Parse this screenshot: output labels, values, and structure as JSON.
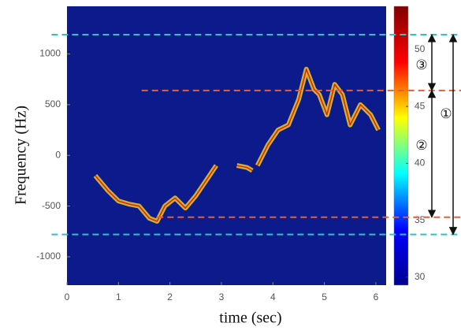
{
  "chart_data": {
    "type": "spectrogram",
    "xlabel": "time (sec)",
    "ylabel": "Frequency (Hz)",
    "xlim": [
      0,
      6.2
    ],
    "xticks": [
      0,
      1,
      2,
      3,
      4,
      5,
      6
    ],
    "ylim": [
      -1280,
      1470
    ],
    "yticks": [
      -1000,
      -500,
      0,
      500,
      1000
    ],
    "background": "#0c1a8c",
    "colormap": [
      "#00008f",
      "#0000ff",
      "#00ffff",
      "#ffff00",
      "#ff0000",
      "#800000"
    ],
    "clim": [
      29.3,
      53.8
    ],
    "cticks": [
      30,
      35,
      40,
      45,
      50
    ],
    "series": [
      {
        "color": "#f0d020",
        "x": [
          0.55,
          0.8,
          1.0,
          1.2,
          1.4,
          1.6,
          1.75,
          1.9,
          2.1,
          2.3,
          2.5,
          2.7,
          2.9
        ],
        "values": [
          -200,
          -350,
          -450,
          -480,
          -500,
          -620,
          -650,
          -500,
          -420,
          -520,
          -400,
          -250,
          -100
        ]
      },
      {
        "color": "#f0d020",
        "x": [
          3.3,
          3.5,
          3.6
        ],
        "values": [
          -100,
          -120,
          -150
        ]
      },
      {
        "color": "#f0d020",
        "x": [
          3.7,
          3.9,
          4.1,
          4.3,
          4.5,
          4.65,
          4.8,
          4.9,
          5.05,
          5.2,
          5.35,
          5.5,
          5.7,
          5.9,
          6.05
        ],
        "values": [
          -100,
          100,
          250,
          300,
          550,
          850,
          650,
          600,
          400,
          700,
          600,
          300,
          500,
          400,
          250
        ]
      }
    ],
    "hlines": [
      {
        "value": 1190,
        "xstart": -0.3,
        "color": "#2ec4c4"
      },
      {
        "value": 640,
        "xstart": 1.45,
        "color": "#e0603c"
      },
      {
        "value": -610,
        "xstart": 1.75,
        "color": "#e0603c"
      },
      {
        "value": -780,
        "xstart": -0.3,
        "color": "#2ec4c4"
      }
    ],
    "ranges": [
      {
        "label": "①",
        "from": -780,
        "to": 1190
      },
      {
        "label": "②",
        "from": -610,
        "to": 640
      },
      {
        "label": "③",
        "from": 640,
        "to": 1190
      }
    ]
  }
}
